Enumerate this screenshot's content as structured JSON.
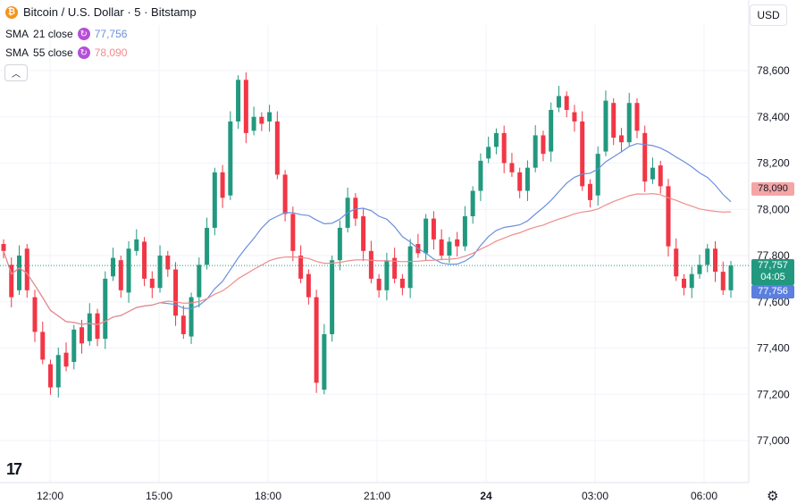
{
  "header": {
    "title": "Bitcoin / U.S. Dollar · 5 · Bitstamp",
    "logo_text": "₿"
  },
  "indicators": [
    {
      "label": "SMA",
      "params": "21 close",
      "value": "77,756",
      "color": "#6b8fdc"
    },
    {
      "label": "SMA",
      "params": "55 close",
      "value": "78,090",
      "color": "#f08c8c"
    }
  ],
  "currency_button": "USD",
  "price_tags": {
    "sma55": {
      "value": "78,090",
      "color": "#f5a5a5"
    },
    "last": {
      "value": "77,757",
      "countdown": "04:05",
      "color": "#22997f"
    },
    "sma21": {
      "value": "77,756",
      "color": "#5b7fe0"
    }
  },
  "icons": {
    "collapse": "chevron-up-icon",
    "settings": "gear-icon",
    "logo": "tradingview-logo"
  },
  "chart_data": {
    "type": "candlestick",
    "symbol": "Bitcoin / U.S. Dollar",
    "interval": "5",
    "exchange": "Bitstamp",
    "ylim": [
      76950,
      78700
    ],
    "y_ticks": [
      77000,
      77200,
      77400,
      77600,
      77800,
      78000,
      78200,
      78400,
      78600
    ],
    "y_tick_labels": [
      "77,000",
      "77,200",
      "77,400",
      "77,600",
      "77,800",
      "78,000",
      "78,200",
      "78,400",
      "78,600"
    ],
    "x_tick_labels": [
      "12:00",
      "15:00",
      "18:00",
      "21:00",
      "24",
      "03:00",
      "06:00"
    ],
    "x_tick_bold": [
      false,
      false,
      false,
      false,
      true,
      false,
      false
    ],
    "grid": true,
    "last_price": 77757,
    "up_color": "#22997f",
    "down_color": "#f23645",
    "candle_points": [
      [
        77850,
        77820
      ],
      [
        77760,
        77620
      ],
      [
        77650,
        77800
      ],
      [
        77830,
        77650
      ],
      [
        77620,
        77470
      ],
      [
        77470,
        77350
      ],
      [
        77330,
        77230
      ],
      [
        77230,
        77370
      ],
      [
        77380,
        77320
      ],
      [
        77340,
        77480
      ],
      [
        77490,
        77420
      ],
      [
        77430,
        77550
      ],
      [
        77550,
        77440
      ],
      [
        77440,
        77700
      ],
      [
        77710,
        77790
      ],
      [
        77780,
        77650
      ],
      [
        77640,
        77830
      ],
      [
        77820,
        77870
      ],
      [
        77860,
        77700
      ],
      [
        77700,
        77660
      ],
      [
        77660,
        77800
      ],
      [
        77800,
        77740
      ],
      [
        77740,
        77540
      ],
      [
        77540,
        77460
      ],
      [
        77450,
        77620
      ],
      [
        77620,
        77760
      ],
      [
        77760,
        77920
      ],
      [
        77920,
        78160
      ],
      [
        78160,
        78050
      ],
      [
        78060,
        78380
      ],
      [
        78380,
        78560
      ],
      [
        78560,
        78330
      ],
      [
        78340,
        78400
      ],
      [
        78400,
        78370
      ],
      [
        78380,
        78420
      ],
      [
        78380,
        78150
      ],
      [
        78150,
        77980
      ],
      [
        77980,
        77820
      ],
      [
        77800,
        77700
      ],
      [
        77720,
        77620
      ],
      [
        77620,
        77250
      ],
      [
        77220,
        77460
      ],
      [
        77460,
        77780
      ],
      [
        77780,
        77920
      ],
      [
        77920,
        78050
      ],
      [
        78050,
        77960
      ],
      [
        77970,
        77820
      ],
      [
        77820,
        77700
      ],
      [
        77700,
        77650
      ],
      [
        77650,
        77780
      ],
      [
        77790,
        77700
      ],
      [
        77700,
        77660
      ],
      [
        77660,
        77840
      ],
      [
        77850,
        77810
      ],
      [
        77810,
        77960
      ],
      [
        77960,
        77870
      ],
      [
        77870,
        77800
      ],
      [
        77800,
        77860
      ],
      [
        77870,
        77840
      ],
      [
        77840,
        77970
      ],
      [
        77970,
        78080
      ],
      [
        78080,
        78210
      ],
      [
        78220,
        78270
      ],
      [
        78270,
        78330
      ],
      [
        78330,
        78200
      ],
      [
        78200,
        78160
      ],
      [
        78160,
        78080
      ],
      [
        78080,
        78180
      ],
      [
        78180,
        78320
      ],
      [
        78320,
        78240
      ],
      [
        78250,
        78430
      ],
      [
        78440,
        78490
      ],
      [
        78490,
        78430
      ],
      [
        78420,
        78380
      ],
      [
        78380,
        78100
      ],
      [
        78110,
        78040
      ],
      [
        78060,
        78240
      ],
      [
        78250,
        78470
      ],
      [
        78460,
        78310
      ],
      [
        78320,
        78290
      ],
      [
        78290,
        78460
      ],
      [
        78460,
        78340
      ],
      [
        78330,
        78120
      ],
      [
        78130,
        78180
      ],
      [
        78190,
        78100
      ],
      [
        78100,
        77840
      ],
      [
        77830,
        77710
      ],
      [
        77700,
        77660
      ],
      [
        77660,
        77720
      ],
      [
        77720,
        77760
      ],
      [
        77760,
        77830
      ],
      [
        77830,
        77730
      ],
      [
        77730,
        77650
      ],
      [
        77650,
        77757
      ]
    ]
  }
}
